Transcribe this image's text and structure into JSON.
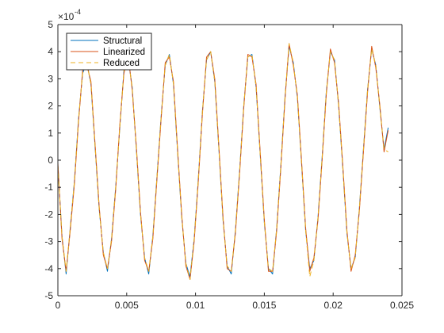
{
  "chart_data": {
    "type": "line",
    "title": "",
    "xlabel": "",
    "ylabel": "",
    "xlim": [
      0,
      0.025
    ],
    "ylim": [
      -5,
      5
    ],
    "y_exponent_label": "×10",
    "y_exponent_power": "-4",
    "x_ticks": [
      0,
      0.005,
      0.01,
      0.015,
      0.02,
      0.025
    ],
    "x_tick_labels": [
      "0",
      "0.005",
      "0.01",
      "0.015",
      "0.02",
      "0.025"
    ],
    "y_ticks": [
      -5,
      -4,
      -3,
      -2,
      -1,
      0,
      1,
      2,
      3,
      4,
      5
    ],
    "y_tick_labels": [
      "-5",
      "-4",
      "-3",
      "-2",
      "-1",
      "0",
      "1",
      "2",
      "3",
      "4",
      "5"
    ],
    "grid": false,
    "box": true,
    "legend_position": "top-left",
    "x_end": 0.024,
    "series": [
      {
        "name": "Structural",
        "color": "#0072BD",
        "style": "solid",
        "points": [
          [
            0.0,
            -0.2
          ],
          [
            0.0003,
            -2.8
          ],
          [
            0.0006,
            -4.2
          ],
          [
            0.0009,
            -2.5
          ],
          [
            0.0012,
            -0.8
          ],
          [
            0.0015,
            1.5
          ],
          [
            0.0018,
            3.2
          ],
          [
            0.0021,
            3.6
          ],
          [
            0.0024,
            2.8
          ],
          [
            0.0027,
            0.5
          ],
          [
            0.003,
            -1.8
          ],
          [
            0.0033,
            -3.4
          ],
          [
            0.0036,
            -4.1
          ],
          [
            0.0039,
            -2.9
          ],
          [
            0.0042,
            -1.0
          ],
          [
            0.0045,
            1.2
          ],
          [
            0.0048,
            3.3
          ],
          [
            0.0051,
            3.8
          ],
          [
            0.0054,
            2.7
          ],
          [
            0.0057,
            0.4
          ],
          [
            0.006,
            -2.0
          ],
          [
            0.0063,
            -3.6
          ],
          [
            0.0066,
            -4.2
          ],
          [
            0.0069,
            -2.8
          ],
          [
            0.0072,
            -0.6
          ],
          [
            0.0075,
            1.6
          ],
          [
            0.0078,
            3.5
          ],
          [
            0.0081,
            3.9
          ],
          [
            0.0084,
            2.8
          ],
          [
            0.0087,
            0.3
          ],
          [
            0.009,
            -2.1
          ],
          [
            0.0093,
            -3.8
          ],
          [
            0.0096,
            -4.3
          ],
          [
            0.0099,
            -2.9
          ],
          [
            0.0102,
            -0.7
          ],
          [
            0.0105,
            1.8
          ],
          [
            0.0108,
            3.7
          ],
          [
            0.0111,
            4.0
          ],
          [
            0.0114,
            2.9
          ],
          [
            0.0117,
            0.4
          ],
          [
            0.012,
            -2.2
          ],
          [
            0.0123,
            -3.9
          ],
          [
            0.0126,
            -4.2
          ],
          [
            0.0129,
            -2.6
          ],
          [
            0.0132,
            -0.4
          ],
          [
            0.0135,
            2.0
          ],
          [
            0.0138,
            3.8
          ],
          [
            0.0141,
            3.9
          ],
          [
            0.0144,
            2.7
          ],
          [
            0.0147,
            0.2
          ],
          [
            0.015,
            -2.3
          ],
          [
            0.0153,
            -4.0
          ],
          [
            0.0156,
            -4.2
          ],
          [
            0.0159,
            -2.5
          ],
          [
            0.0162,
            -0.2
          ],
          [
            0.0165,
            2.3
          ],
          [
            0.0168,
            4.2
          ],
          [
            0.0171,
            3.6
          ],
          [
            0.0174,
            2.3
          ],
          [
            0.0177,
            -0.1
          ],
          [
            0.018,
            -2.6
          ],
          [
            0.0183,
            -4.0
          ],
          [
            0.0186,
            -3.7
          ],
          [
            0.0189,
            -2.1
          ],
          [
            0.0192,
            0.1
          ],
          [
            0.0195,
            2.5
          ],
          [
            0.0198,
            4.0
          ],
          [
            0.0201,
            3.7
          ],
          [
            0.0204,
            2.0
          ],
          [
            0.0207,
            -0.3
          ],
          [
            0.021,
            -2.7
          ],
          [
            0.0213,
            -4.0
          ],
          [
            0.0216,
            -3.6
          ],
          [
            0.0219,
            -1.8
          ],
          [
            0.0222,
            0.4
          ],
          [
            0.0225,
            2.6
          ],
          [
            0.0228,
            4.1
          ],
          [
            0.0231,
            3.5
          ],
          [
            0.0234,
            1.9
          ],
          [
            0.0237,
            0.4
          ],
          [
            0.024,
            1.2
          ]
        ]
      },
      {
        "name": "Linearized",
        "color": "#D95319",
        "style": "solid",
        "points": [
          [
            0.0,
            -0.1
          ],
          [
            0.0003,
            -2.9
          ],
          [
            0.0006,
            -4.1
          ],
          [
            0.0009,
            -2.6
          ],
          [
            0.0012,
            -0.9
          ],
          [
            0.0015,
            1.4
          ],
          [
            0.0018,
            3.3
          ],
          [
            0.0021,
            3.5
          ],
          [
            0.0024,
            2.9
          ],
          [
            0.0027,
            0.6
          ],
          [
            0.003,
            -1.7
          ],
          [
            0.0033,
            -3.5
          ],
          [
            0.0036,
            -4.0
          ],
          [
            0.0039,
            -3.0
          ],
          [
            0.0042,
            -1.1
          ],
          [
            0.0045,
            1.3
          ],
          [
            0.0048,
            3.2
          ],
          [
            0.0051,
            3.9
          ],
          [
            0.0054,
            2.6
          ],
          [
            0.0057,
            0.5
          ],
          [
            0.006,
            -1.9
          ],
          [
            0.0063,
            -3.7
          ],
          [
            0.0066,
            -4.1
          ],
          [
            0.0069,
            -2.9
          ],
          [
            0.0072,
            -0.7
          ],
          [
            0.0075,
            1.5
          ],
          [
            0.0078,
            3.6
          ],
          [
            0.0081,
            3.8
          ],
          [
            0.0084,
            2.9
          ],
          [
            0.0087,
            0.4
          ],
          [
            0.009,
            -2.0
          ],
          [
            0.0093,
            -3.9
          ],
          [
            0.0096,
            -4.4
          ],
          [
            0.0099,
            -3.0
          ],
          [
            0.0102,
            -0.8
          ],
          [
            0.0105,
            1.7
          ],
          [
            0.0108,
            3.8
          ],
          [
            0.0111,
            4.0
          ],
          [
            0.0114,
            3.0
          ],
          [
            0.0117,
            0.5
          ],
          [
            0.012,
            -2.1
          ],
          [
            0.0123,
            -4.0
          ],
          [
            0.0126,
            -4.1
          ],
          [
            0.0129,
            -2.7
          ],
          [
            0.0132,
            -0.5
          ],
          [
            0.0135,
            1.9
          ],
          [
            0.0138,
            3.9
          ],
          [
            0.0141,
            3.8
          ],
          [
            0.0144,
            2.8
          ],
          [
            0.0147,
            0.3
          ],
          [
            0.015,
            -2.2
          ],
          [
            0.0153,
            -4.1
          ],
          [
            0.0156,
            -4.1
          ],
          [
            0.0159,
            -2.6
          ],
          [
            0.0162,
            -0.3
          ],
          [
            0.0165,
            2.2
          ],
          [
            0.0168,
            4.3
          ],
          [
            0.0171,
            3.5
          ],
          [
            0.0174,
            2.4
          ],
          [
            0.0177,
            0.0
          ],
          [
            0.018,
            -2.5
          ],
          [
            0.0183,
            -4.1
          ],
          [
            0.0186,
            -3.6
          ],
          [
            0.0189,
            -2.2
          ],
          [
            0.0192,
            0.0
          ],
          [
            0.0195,
            2.4
          ],
          [
            0.0198,
            4.1
          ],
          [
            0.0201,
            3.6
          ],
          [
            0.0204,
            2.1
          ],
          [
            0.0207,
            -0.2
          ],
          [
            0.021,
            -2.6
          ],
          [
            0.0213,
            -4.1
          ],
          [
            0.0216,
            -3.5
          ],
          [
            0.0219,
            -1.9
          ],
          [
            0.0222,
            0.3
          ],
          [
            0.0225,
            2.5
          ],
          [
            0.0228,
            4.2
          ],
          [
            0.0231,
            3.4
          ],
          [
            0.0234,
            2.0
          ],
          [
            0.0237,
            0.3
          ],
          [
            0.024,
            1.1
          ]
        ]
      },
      {
        "name": "Reduced",
        "color": "#EDB120",
        "style": "dashed",
        "points": [
          [
            0.0,
            -0.2
          ],
          [
            0.0003,
            -2.8
          ],
          [
            0.0006,
            -4.1
          ],
          [
            0.0009,
            -2.5
          ],
          [
            0.0012,
            -0.8
          ],
          [
            0.0015,
            1.5
          ],
          [
            0.0018,
            3.2
          ],
          [
            0.0021,
            3.6
          ],
          [
            0.0024,
            2.8
          ],
          [
            0.0027,
            0.5
          ],
          [
            0.003,
            -1.8
          ],
          [
            0.0033,
            -3.4
          ],
          [
            0.0036,
            -4.0
          ],
          [
            0.0039,
            -2.9
          ],
          [
            0.0042,
            -1.0
          ],
          [
            0.0045,
            1.2
          ],
          [
            0.0048,
            3.3
          ],
          [
            0.0051,
            3.8
          ],
          [
            0.0054,
            2.7
          ],
          [
            0.0057,
            0.4
          ],
          [
            0.006,
            -2.0
          ],
          [
            0.0063,
            -3.6
          ],
          [
            0.0066,
            -4.1
          ],
          [
            0.0069,
            -2.8
          ],
          [
            0.0072,
            -0.6
          ],
          [
            0.0075,
            1.6
          ],
          [
            0.0078,
            3.5
          ],
          [
            0.0081,
            3.9
          ],
          [
            0.0084,
            2.8
          ],
          [
            0.0087,
            0.3
          ],
          [
            0.009,
            -2.1
          ],
          [
            0.0093,
            -3.8
          ],
          [
            0.0096,
            -4.4
          ],
          [
            0.0099,
            -2.9
          ],
          [
            0.0102,
            -0.7
          ],
          [
            0.0105,
            1.8
          ],
          [
            0.0108,
            3.7
          ],
          [
            0.0111,
            4.0
          ],
          [
            0.0114,
            2.9
          ],
          [
            0.0117,
            0.4
          ],
          [
            0.012,
            -2.2
          ],
          [
            0.0123,
            -3.9
          ],
          [
            0.0126,
            -4.1
          ],
          [
            0.0129,
            -2.6
          ],
          [
            0.0132,
            -0.4
          ],
          [
            0.0135,
            2.0
          ],
          [
            0.0138,
            3.8
          ],
          [
            0.0141,
            3.9
          ],
          [
            0.0144,
            2.7
          ],
          [
            0.0147,
            0.2
          ],
          [
            0.015,
            -2.3
          ],
          [
            0.0153,
            -4.0
          ],
          [
            0.0156,
            -4.1
          ],
          [
            0.0159,
            -2.5
          ],
          [
            0.0162,
            -0.2
          ],
          [
            0.0165,
            2.3
          ],
          [
            0.0168,
            4.3
          ],
          [
            0.0171,
            3.6
          ],
          [
            0.0174,
            2.3
          ],
          [
            0.0177,
            -0.1
          ],
          [
            0.018,
            -2.6
          ],
          [
            0.0183,
            -4.3
          ],
          [
            0.0186,
            -3.7
          ],
          [
            0.0189,
            -2.1
          ],
          [
            0.0192,
            0.1
          ],
          [
            0.0195,
            2.5
          ],
          [
            0.0198,
            4.0
          ],
          [
            0.0201,
            3.7
          ],
          [
            0.0204,
            2.0
          ],
          [
            0.0207,
            -0.3
          ],
          [
            0.021,
            -2.7
          ],
          [
            0.0213,
            -4.0
          ],
          [
            0.0216,
            -3.6
          ],
          [
            0.0219,
            -1.8
          ],
          [
            0.0222,
            0.4
          ],
          [
            0.0225,
            2.6
          ],
          [
            0.0228,
            4.1
          ],
          [
            0.0231,
            3.5
          ],
          [
            0.0234,
            1.9
          ],
          [
            0.0237,
            0.4
          ],
          [
            0.024,
            0.3
          ]
        ]
      }
    ]
  }
}
